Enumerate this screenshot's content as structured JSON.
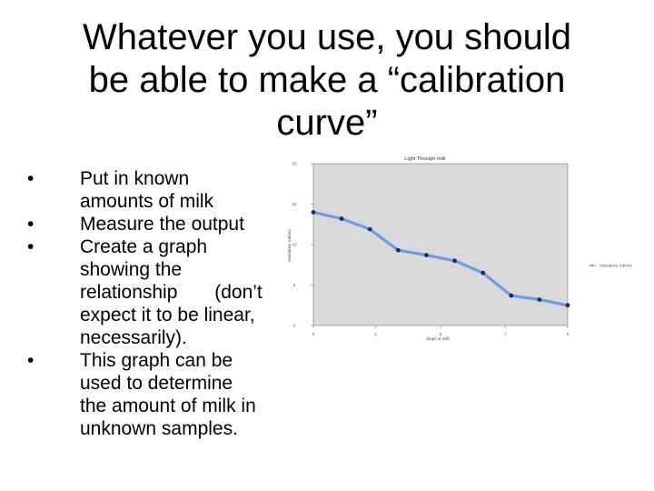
{
  "slide": {
    "title_lines": [
      "Whatever you use, you should",
      "be able to make a “calibration",
      "curve”"
    ],
    "bullets": [
      {
        "lines": [
          "Put in known",
          "amounts of milk"
        ]
      },
      {
        "lines": [
          "Measure the output"
        ]
      },
      {
        "lines": [
          "Create a graph",
          "showing the",
          "relationship       (don’t",
          "expect it to be linear,",
          "necessarily)."
        ]
      },
      {
        "lines": [
          "This graph can be",
          "used to determine",
          "the amount of milk in",
          "unknown samples."
        ]
      }
    ]
  },
  "chart_data": {
    "type": "line",
    "title": "Light Through milk",
    "xlabel": "drops of milk",
    "ylabel": "resistance (ohms)",
    "xlim": [
      0,
      9
    ],
    "ylim": [
      0,
      20
    ],
    "xticks": [
      "0",
      "2",
      "5",
      "7",
      "9"
    ],
    "xtick_values": [
      0,
      2.2,
      4.5,
      6.8,
      9
    ],
    "yticks": [
      "0",
      "5",
      "10",
      "15",
      "20"
    ],
    "ytick_values": [
      0,
      5,
      10,
      15,
      20
    ],
    "grid": false,
    "legend_position": "right",
    "series": [
      {
        "name": "resistance (ohms)",
        "color": "#6b9de6",
        "marker_color": "#1f2a66",
        "x": [
          0,
          1.0,
          2.0,
          3.0,
          4.0,
          5.0,
          6.0,
          7.0,
          8.0,
          9.0
        ],
        "y": [
          14.0,
          13.2,
          11.9,
          9.3,
          8.7,
          8.0,
          6.5,
          3.7,
          3.2,
          2.5
        ]
      }
    ]
  }
}
